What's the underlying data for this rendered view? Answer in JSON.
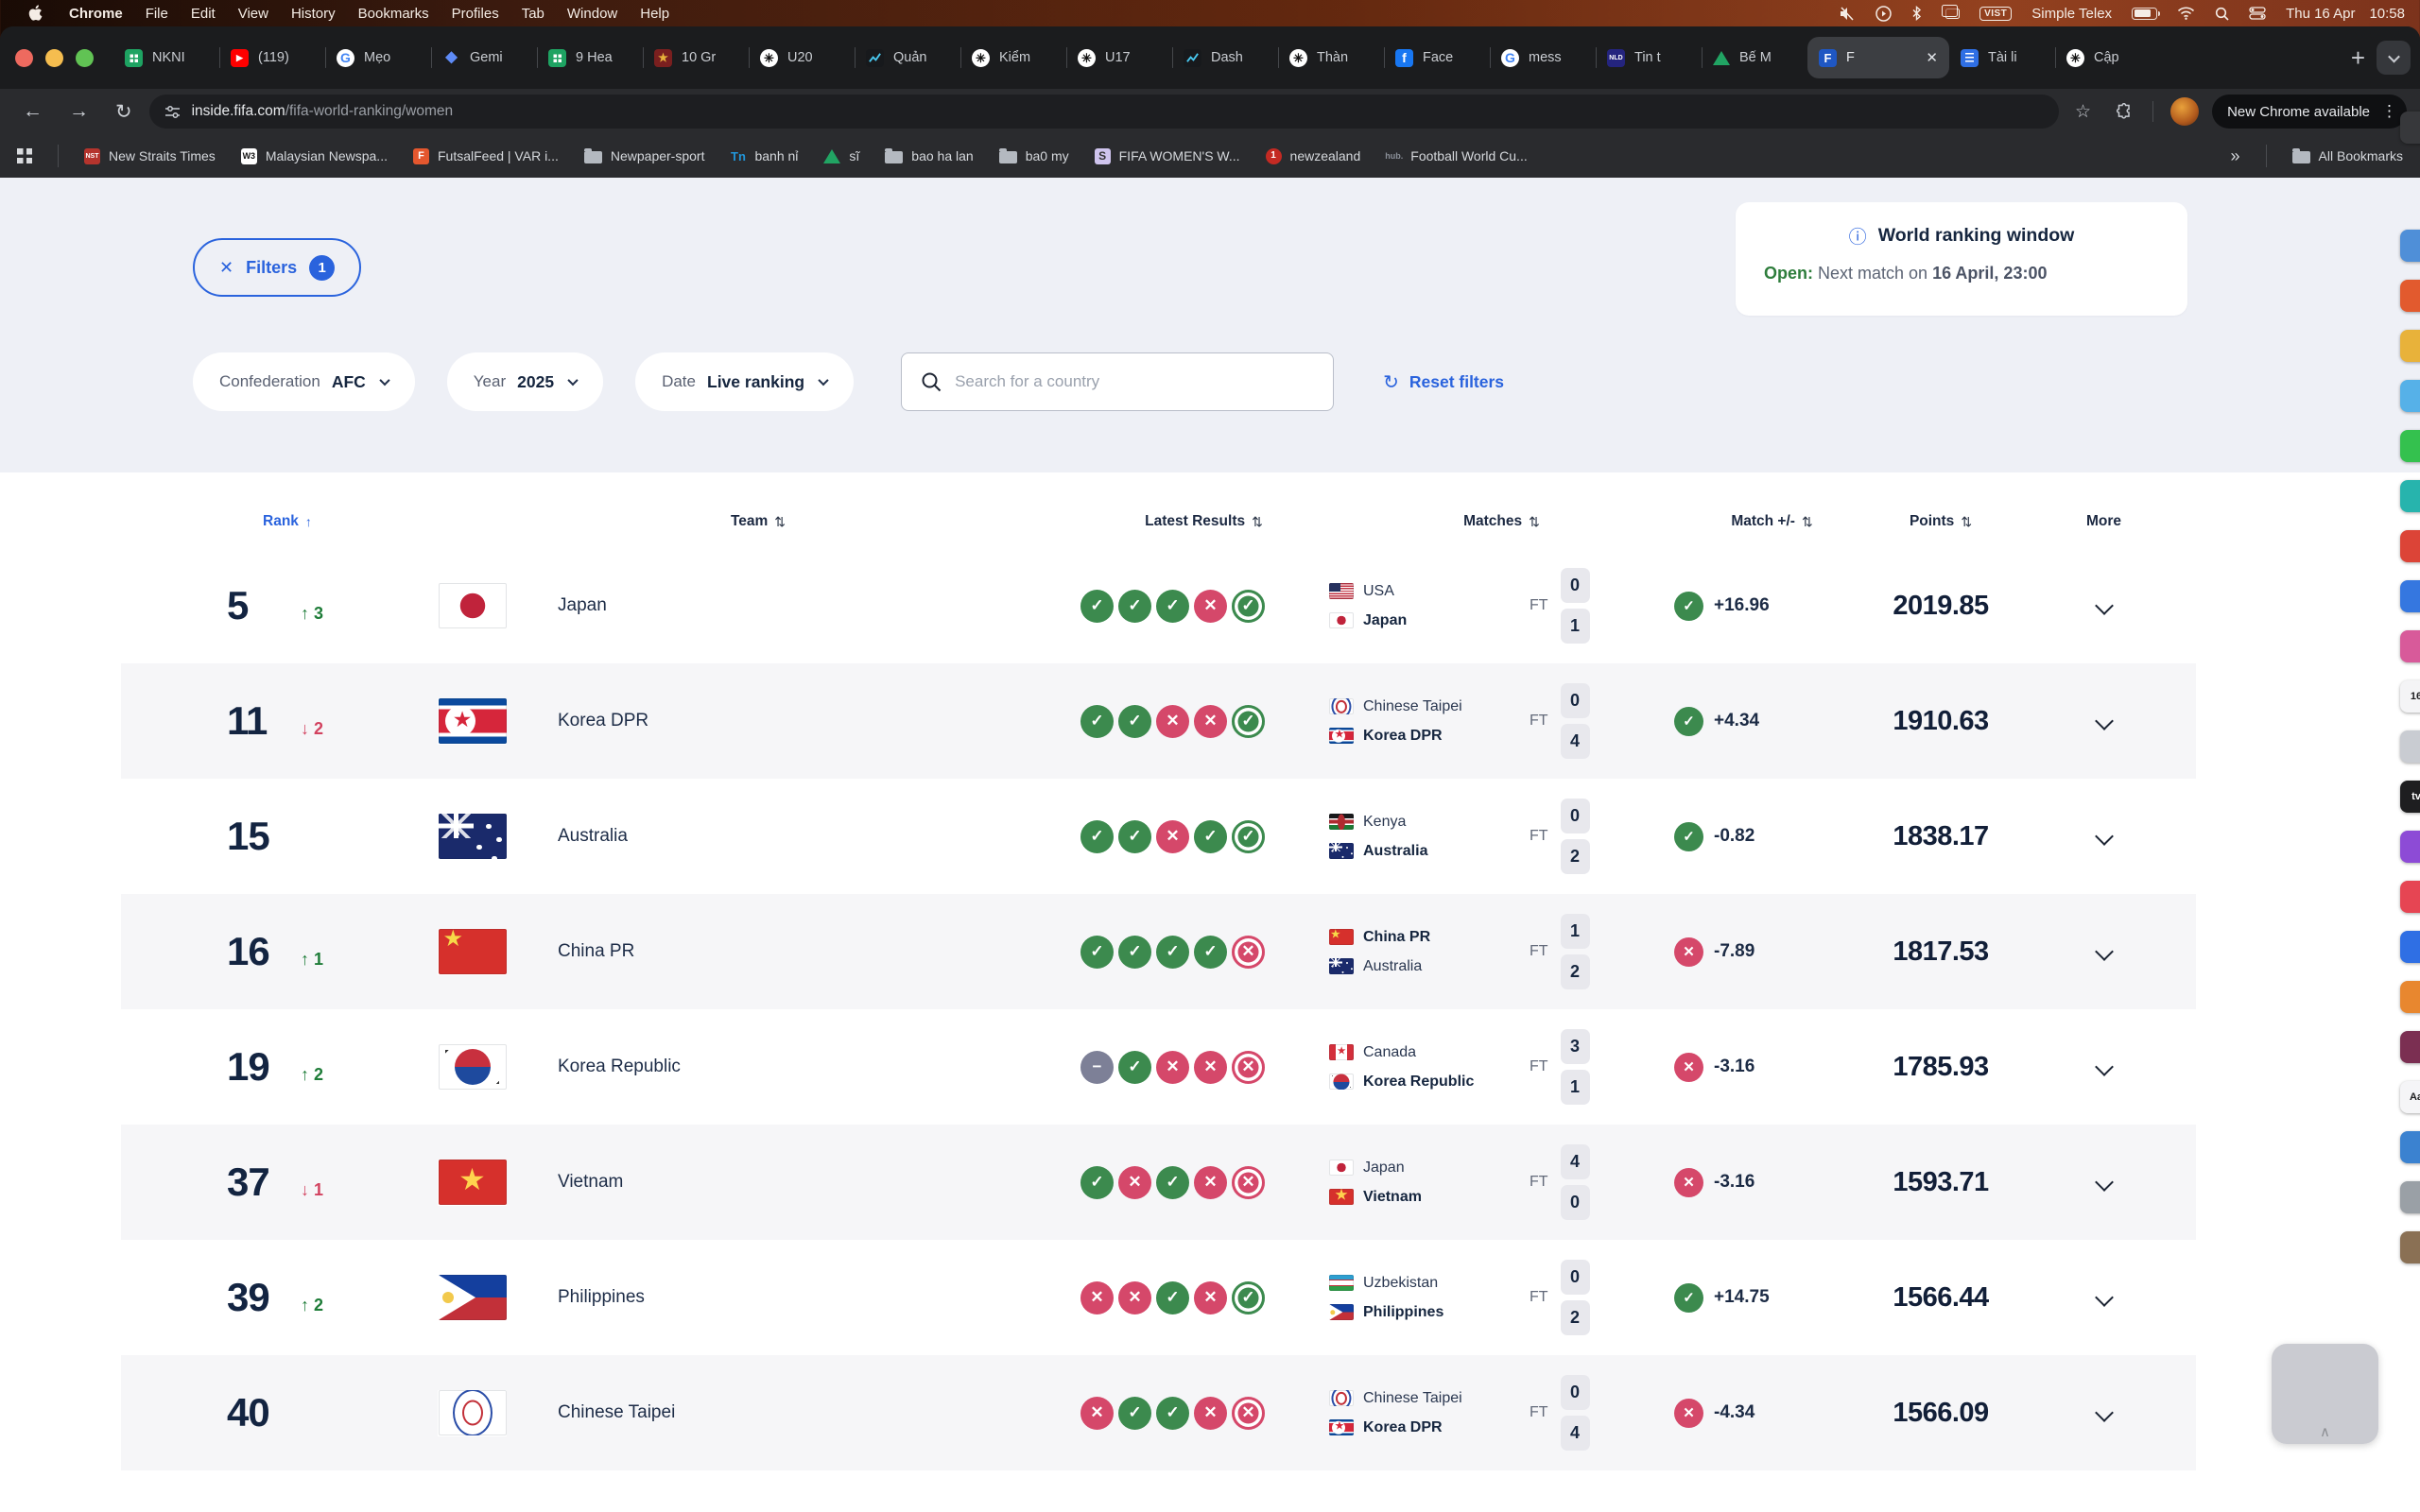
{
  "menu_bar": {
    "items": [
      "Chrome",
      "File",
      "Edit",
      "View",
      "History",
      "Bookmarks",
      "Profiles",
      "Tab",
      "Window",
      "Help"
    ],
    "status": {
      "input_badge": "VIST",
      "input_label": "Simple Telex",
      "date": "Thu 16 Apr",
      "time": "10:58"
    }
  },
  "tabs": {
    "active_index": 16,
    "new_tab_label": "+",
    "items": [
      {
        "icon": "sheets",
        "label": "NKNI"
      },
      {
        "icon": "youtube",
        "label": "(119)"
      },
      {
        "icon": "google",
        "label": "Mẹo"
      },
      {
        "icon": "gemini",
        "label": "Gemi"
      },
      {
        "icon": "sheets",
        "label": "9 Hea"
      },
      {
        "icon": "crest",
        "label": "10 Gr"
      },
      {
        "icon": "chatgpt",
        "label": "U20"
      },
      {
        "icon": "chart",
        "label": "Quản"
      },
      {
        "icon": "chatgpt",
        "label": "Kiểm"
      },
      {
        "icon": "chatgpt",
        "label": "U17"
      },
      {
        "icon": "chart",
        "label": "Dash"
      },
      {
        "icon": "chatgpt",
        "label": "Thàn"
      },
      {
        "icon": "facebook",
        "label": "Face"
      },
      {
        "icon": "google",
        "label": "mess"
      },
      {
        "icon": "nld",
        "label": "Tin t"
      },
      {
        "icon": "drive",
        "label": "Bế M"
      },
      {
        "icon": "fifa",
        "label": "F",
        "close": "✕"
      },
      {
        "icon": "docs",
        "label": "Tài li"
      },
      {
        "icon": "chatgpt",
        "label": "Cập"
      }
    ]
  },
  "icon_defs": {
    "sheets": {},
    "youtube": {
      "glyph": "▶",
      "bg": "#ff0000",
      "fg": "#ffffff",
      "fs": 9
    },
    "google": {
      "glyph": "G",
      "bg": "#ffffff",
      "fg": "#4285f4",
      "fs": 14
    },
    "gemini": {
      "glyph": "◆",
      "bg": "transparent",
      "fg": "#5e8bf7",
      "fs": 16
    },
    "crest": {
      "glyph": "★",
      "bg": "#7a1f1f",
      "fg": "#e8b23a",
      "fs": 12
    },
    "chatgpt": {
      "glyph": "✳",
      "bg": "#ffffff",
      "fg": "#111111",
      "fs": 13
    },
    "chart": {},
    "facebook": {
      "glyph": "f",
      "bg": "#1877f2",
      "fg": "#ffffff",
      "fs": 14
    },
    "nld": {
      "glyph": "NLD",
      "bg": "#24247e",
      "fg": "#ffffff",
      "fs": 7
    },
    "drive": {},
    "fifa": {
      "glyph": "F",
      "bg": "#1f57c3",
      "fg": "#ffffff",
      "fs": 13
    },
    "docs": {},
    "nst": {
      "glyph": "NST",
      "bg": "#b5342d",
      "fg": "#ffffff",
      "fs": 7
    },
    "w3": {
      "glyph": "W3",
      "bg": "#ffffff",
      "fg": "#111111",
      "fs": 9
    },
    "futsal": {
      "glyph": "F",
      "bg": "#e4572e",
      "fg": "#ffffff",
      "fs": 11
    },
    "folder": {},
    "tn": {
      "glyph": "Tn",
      "bg": "transparent",
      "fg": "#2196d9",
      "fs": 13
    },
    "s": {
      "glyph": "S",
      "bg": "#cfc4ee",
      "fg": "#333333",
      "fs": 12
    },
    "nz": {
      "glyph": "1",
      "bg": "#c42a23",
      "fg": "#ffffff",
      "fs": 10,
      "round": true
    },
    "hub": {
      "glyph": "hub.",
      "bg": "transparent",
      "fg": "#8a8f98",
      "fs": 9
    },
    "apps": {}
  },
  "toolbar": {
    "url_host": "inside.fifa.com",
    "url_path": "/fifa-world-ranking/women",
    "update_label": "New Chrome available"
  },
  "bookmarks": {
    "items": [
      {
        "icon": "nst",
        "label": "New Straits Times"
      },
      {
        "icon": "w3",
        "label": "Malaysian Newspa..."
      },
      {
        "icon": "futsal",
        "label": "FutsalFeed | VAR i..."
      },
      {
        "icon": "folder",
        "label": "Newpaper-sport"
      },
      {
        "icon": "tn",
        "label": "banh nỉ"
      },
      {
        "icon": "drive",
        "label": "sĩ"
      },
      {
        "icon": "folder",
        "label": "bao ha lan"
      },
      {
        "icon": "folder",
        "label": "ba0 my"
      },
      {
        "icon": "s",
        "label": "FIFA WOMEN'S W..."
      },
      {
        "icon": "nz",
        "label": "newzealand"
      },
      {
        "icon": "hub",
        "label": "Football World Cu..."
      }
    ],
    "overflow": "»",
    "all_bookmarks": "All Bookmarks"
  },
  "page": {
    "filters_label": "Filters",
    "filters_count": "1",
    "ranking_window": {
      "title": "World ranking window",
      "info_icon": "ⓘ",
      "status": "Open:",
      "text": "Next match on ",
      "date": "16 April, 23:00"
    },
    "filter_pills": [
      {
        "label": "Confederation",
        "value": "AFC"
      },
      {
        "label": "Year",
        "value": "2025"
      },
      {
        "label": "Date",
        "value": "Live ranking"
      }
    ],
    "search_placeholder": "Search for a country",
    "reset_label": "Reset filters",
    "table": {
      "headers": [
        {
          "label": "Rank",
          "sort": "asc"
        },
        {
          "label": "Team",
          "sort": "both"
        },
        {
          "label": "Latest Results",
          "sort": "both"
        },
        {
          "label": "Matches",
          "sort": "both"
        },
        {
          "label": "Match +/-",
          "sort": "both"
        },
        {
          "label": "Points",
          "sort": "both"
        },
        {
          "label": "More",
          "sort": "none"
        }
      ],
      "rows": [
        {
          "rank": "5",
          "move": "up",
          "move_value": "3",
          "team": "Japan",
          "flag": "jp",
          "results": [
            "W",
            "W",
            "W",
            "L",
            "W"
          ],
          "match": {
            "home": "USA",
            "home_flag": "us",
            "home_score": "0",
            "away": "Japan",
            "away_flag": "jp",
            "away_score": "1",
            "status": "FT",
            "bold": "away"
          },
          "delta": {
            "result": "win",
            "value": "+16.96"
          },
          "points": "2019.85"
        },
        {
          "rank": "11",
          "move": "down",
          "move_value": "2",
          "team": "Korea DPR",
          "flag": "kp",
          "results": [
            "W",
            "W",
            "L",
            "L",
            "W"
          ],
          "match": {
            "home": "Chinese Taipei",
            "home_flag": "tw",
            "home_score": "0",
            "away": "Korea DPR",
            "away_flag": "kp",
            "away_score": "4",
            "status": "FT",
            "bold": "away"
          },
          "delta": {
            "result": "win",
            "value": "+4.34"
          },
          "points": "1910.63"
        },
        {
          "rank": "15",
          "move": "none",
          "move_value": "",
          "team": "Australia",
          "flag": "au",
          "results": [
            "W",
            "W",
            "L",
            "W",
            "W"
          ],
          "match": {
            "home": "Kenya",
            "home_flag": "ke",
            "home_score": "0",
            "away": "Australia",
            "away_flag": "au",
            "away_score": "2",
            "status": "FT",
            "bold": "away"
          },
          "delta": {
            "result": "win",
            "value": "-0.82"
          },
          "points": "1838.17"
        },
        {
          "rank": "16",
          "move": "up",
          "move_value": "1",
          "team": "China PR",
          "flag": "cn",
          "results": [
            "W",
            "W",
            "W",
            "W",
            "L"
          ],
          "match": {
            "home": "China PR",
            "home_flag": "cn",
            "home_score": "1",
            "away": "Australia",
            "away_flag": "au",
            "away_score": "2",
            "status": "FT",
            "bold": "home"
          },
          "delta": {
            "result": "loss",
            "value": "-7.89"
          },
          "points": "1817.53"
        },
        {
          "rank": "19",
          "move": "up",
          "move_value": "2",
          "team": "Korea Republic",
          "flag": "kr",
          "results": [
            "D",
            "W",
            "L",
            "L",
            "L"
          ],
          "match": {
            "home": "Canada",
            "home_flag": "ca",
            "home_score": "3",
            "away": "Korea Republic",
            "away_flag": "kr",
            "away_score": "1",
            "status": "FT",
            "bold": "away"
          },
          "delta": {
            "result": "loss",
            "value": "-3.16"
          },
          "points": "1785.93"
        },
        {
          "rank": "37",
          "move": "down",
          "move_value": "1",
          "team": "Vietnam",
          "flag": "vn",
          "results": [
            "W",
            "L",
            "W",
            "L",
            "L"
          ],
          "match": {
            "home": "Japan",
            "home_flag": "jp",
            "home_score": "4",
            "away": "Vietnam",
            "away_flag": "vn",
            "away_score": "0",
            "status": "FT",
            "bold": "away"
          },
          "delta": {
            "result": "loss",
            "value": "-3.16"
          },
          "points": "1593.71"
        },
        {
          "rank": "39",
          "move": "up",
          "move_value": "2",
          "team": "Philippines",
          "flag": "ph",
          "results": [
            "L",
            "L",
            "W",
            "L",
            "W"
          ],
          "match": {
            "home": "Uzbekistan",
            "home_flag": "uz",
            "home_score": "0",
            "away": "Philippines",
            "away_flag": "ph",
            "away_score": "2",
            "status": "FT",
            "bold": "away"
          },
          "delta": {
            "result": "win",
            "value": "+14.75"
          },
          "points": "1566.44"
        },
        {
          "rank": "40",
          "move": "none",
          "move_value": "",
          "team": "Chinese Taipei",
          "flag": "tw",
          "results": [
            "L",
            "W",
            "W",
            "L",
            "L"
          ],
          "match": {
            "home": "Chinese Taipei",
            "home_flag": "tw",
            "home_score": "0",
            "away": "Korea DPR",
            "away_flag": "kp",
            "away_score": "4",
            "status": "FT",
            "bold": "away"
          },
          "delta": {
            "result": "loss",
            "value": "-4.34"
          },
          "points": "1566.09"
        }
      ]
    }
  },
  "dock": {
    "items": [
      {
        "color": "#37383b",
        "label": ""
      },
      {
        "color": "#4f8fd8",
        "label": ""
      },
      {
        "color": "#e25a2e",
        "label": ""
      },
      {
        "color": "#e8b23a",
        "label": ""
      },
      {
        "color": "#56b1e8",
        "label": ""
      },
      {
        "color": "#34c14e",
        "label": ""
      },
      {
        "color": "#27b4ad",
        "label": ""
      },
      {
        "color": "#dc4437",
        "label": ""
      },
      {
        "color": "#3577e0",
        "label": ""
      },
      {
        "color": "#d85a9a",
        "label": ""
      },
      {
        "color": "#f4f4f6",
        "label": "16",
        "dark_text": true
      },
      {
        "color": "#c9ccd2",
        "label": ""
      },
      {
        "color": "#1e1e20",
        "label": "tv"
      },
      {
        "color": "#8d4bd6",
        "label": ""
      },
      {
        "color": "#e64553",
        "label": ""
      },
      {
        "color": "#2f6fe4",
        "label": ""
      },
      {
        "color": "#e8872f",
        "label": ""
      },
      {
        "color": "#7b2f52",
        "label": ""
      },
      {
        "color": "#f5f5f7",
        "label": "Aa",
        "dark_text": true
      },
      {
        "color": "#3b82d0",
        "label": ""
      },
      {
        "color": "#9aa0a6",
        "label": ""
      },
      {
        "color": "#8a7054",
        "label": ""
      }
    ]
  },
  "colors": {
    "accent_blue": "#2a63dd",
    "result_win": "#3c8a4e",
    "result_loss": "#d5486a",
    "result_draw": "#7d8097",
    "open_green": "#2e7d3c",
    "navy": "#16263f"
  }
}
